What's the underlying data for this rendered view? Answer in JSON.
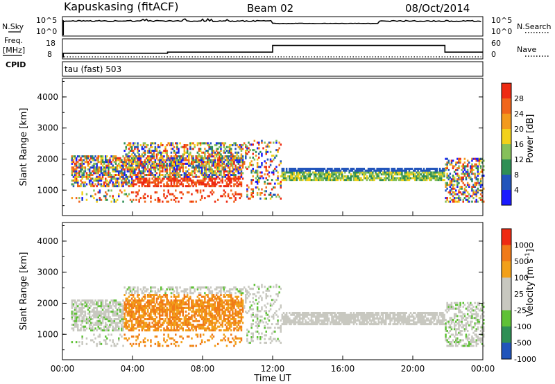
{
  "header": {
    "station": "Kapuskasing (fitACF)",
    "beam": "Beam 02",
    "date": "08/Oct/2014"
  },
  "left_labels": {
    "nsky": "N.Sky",
    "freq_line1": "Freq.",
    "freq_line2": "[MHz]",
    "cpid": "CPID"
  },
  "right_labels": {
    "nsearch": "N.Search",
    "nave": "Nave"
  },
  "cpid_text": "tau (fast) 503",
  "colors": {
    "power": [
      "#1a1aff",
      "#2255bb",
      "#2f8f55",
      "#86c05a",
      "#f2d11a",
      "#f39a1d",
      "#f0661b",
      "#ee2a12"
    ],
    "velocity": [
      "#2255bb",
      "#2f8f55",
      "#5fc136",
      "#c8c8c0",
      "#c8c8c0",
      "#f2a01a",
      "#f07a18",
      "#ee2a12"
    ]
  },
  "chart_data": [
    {
      "type": "line",
      "panel": "noise",
      "left_axis_ticks": [
        "10^5",
        "10^0"
      ],
      "right_axis_ticks": [
        "10^5",
        "10^0"
      ],
      "series": [
        {
          "name": "N.Sky"
        },
        {
          "name": "N.Search"
        }
      ]
    },
    {
      "type": "line",
      "panel": "frequency",
      "left_axis_ticks": [
        "18",
        "8"
      ],
      "right_axis_ticks": [
        "60",
        "0"
      ],
      "series": [
        {
          "name": "Freq.",
          "x": [
            "00:00",
            "06:00",
            "12:00",
            "21:50",
            "24:00"
          ],
          "values": [
            10,
            11,
            17,
            11,
            11
          ]
        },
        {
          "name": "Nave"
        }
      ]
    },
    {
      "type": "heatmap",
      "panel": "power",
      "ylabel": "Slant Range [km]",
      "yticks": [
        "4000",
        "3000",
        "2000",
        "1000"
      ],
      "ylim": [
        180,
        4600
      ],
      "colorbar": {
        "label": "Power [dB]",
        "ticks": [
          "28",
          "24",
          "20",
          "16",
          "12",
          "8",
          "4"
        ]
      }
    },
    {
      "type": "heatmap",
      "panel": "velocity",
      "ylabel": "Slant Range [km]",
      "yticks": [
        "4000",
        "3000",
        "2000",
        "1000"
      ],
      "ylim": [
        180,
        4600
      ],
      "colorbar": {
        "label": "Velocity [m s-1]",
        "ticks": [
          "1000",
          "500",
          "100",
          "25",
          "-25",
          "-100",
          "-500",
          "-1000"
        ]
      }
    }
  ],
  "x_axis": {
    "label": "Time UT",
    "ticks": [
      "00:00",
      "04:00",
      "08:00",
      "12:00",
      "16:00",
      "20:00",
      "00:00"
    ]
  }
}
